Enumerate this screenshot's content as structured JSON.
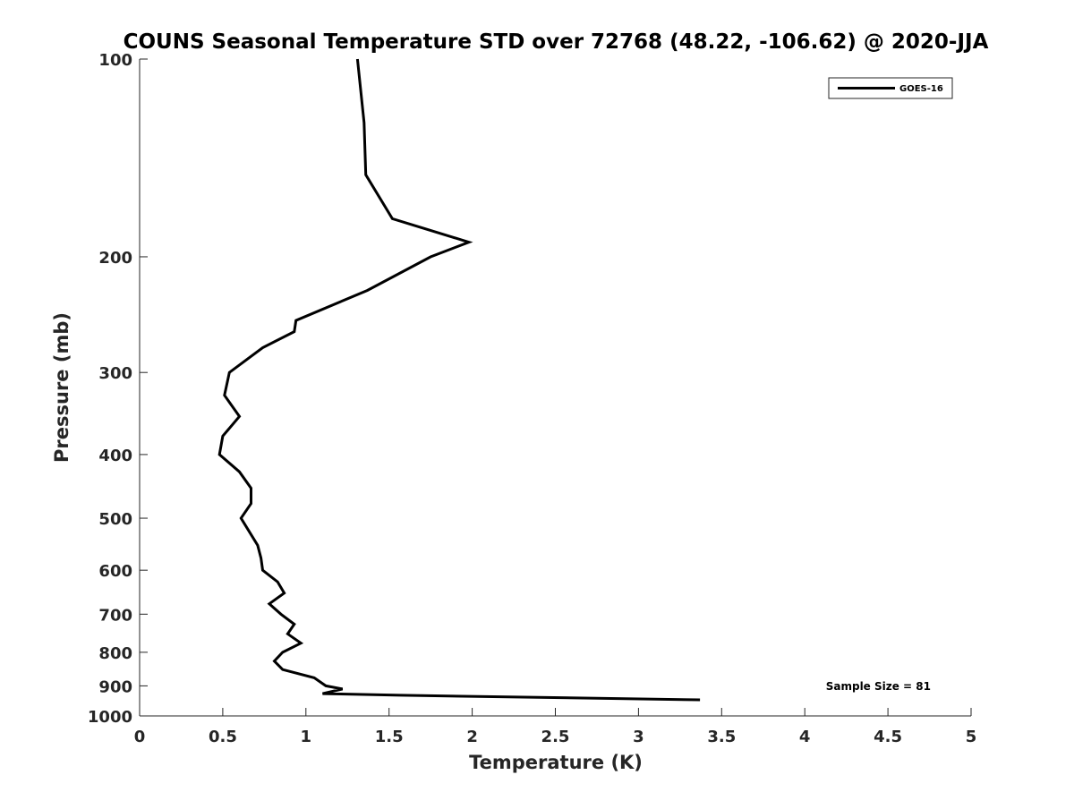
{
  "chart_data": {
    "type": "line",
    "title": "COUNS Seasonal Temperature STD over 72768 (48.22, -106.62) @ 2020-JJA",
    "xlabel": "Temperature (K)",
    "ylabel": "Pressure (mb)",
    "xlim": [
      0,
      5
    ],
    "ylim": [
      100,
      1000
    ],
    "y_scale": "log",
    "y_reversed": true,
    "x_ticks": [
      "0",
      "0.5",
      "1",
      "1.5",
      "2",
      "2.5",
      "3",
      "3.5",
      "4",
      "4.5",
      "5"
    ],
    "y_ticks": [
      "100",
      "200",
      "300",
      "400",
      "500",
      "600",
      "700",
      "800",
      "900",
      "1000"
    ],
    "grid": false,
    "legend_position": "top-right",
    "annotation": "Sample Size = 81",
    "series": [
      {
        "name": "GOES-16",
        "color": "#000000",
        "points": [
          [
            1.31,
            100
          ],
          [
            1.35,
            125
          ],
          [
            1.36,
            150
          ],
          [
            1.52,
            175
          ],
          [
            1.98,
            190
          ],
          [
            1.75,
            200
          ],
          [
            1.37,
            225
          ],
          [
            0.94,
            250
          ],
          [
            0.93,
            260
          ],
          [
            0.74,
            275
          ],
          [
            0.54,
            300
          ],
          [
            0.51,
            325
          ],
          [
            0.6,
            350
          ],
          [
            0.5,
            375
          ],
          [
            0.48,
            400
          ],
          [
            0.6,
            425
          ],
          [
            0.67,
            450
          ],
          [
            0.67,
            475
          ],
          [
            0.61,
            500
          ],
          [
            0.71,
            550
          ],
          [
            0.73,
            575
          ],
          [
            0.74,
            600
          ],
          [
            0.83,
            625
          ],
          [
            0.87,
            650
          ],
          [
            0.78,
            675
          ],
          [
            0.85,
            700
          ],
          [
            0.93,
            725
          ],
          [
            0.89,
            750
          ],
          [
            0.97,
            775
          ],
          [
            0.86,
            800
          ],
          [
            0.81,
            825
          ],
          [
            0.86,
            850
          ],
          [
            1.05,
            875
          ],
          [
            1.12,
            900
          ],
          [
            1.22,
            910
          ],
          [
            1.1,
            925
          ],
          [
            1.57,
            930
          ],
          [
            3.37,
            945
          ]
        ]
      }
    ]
  }
}
